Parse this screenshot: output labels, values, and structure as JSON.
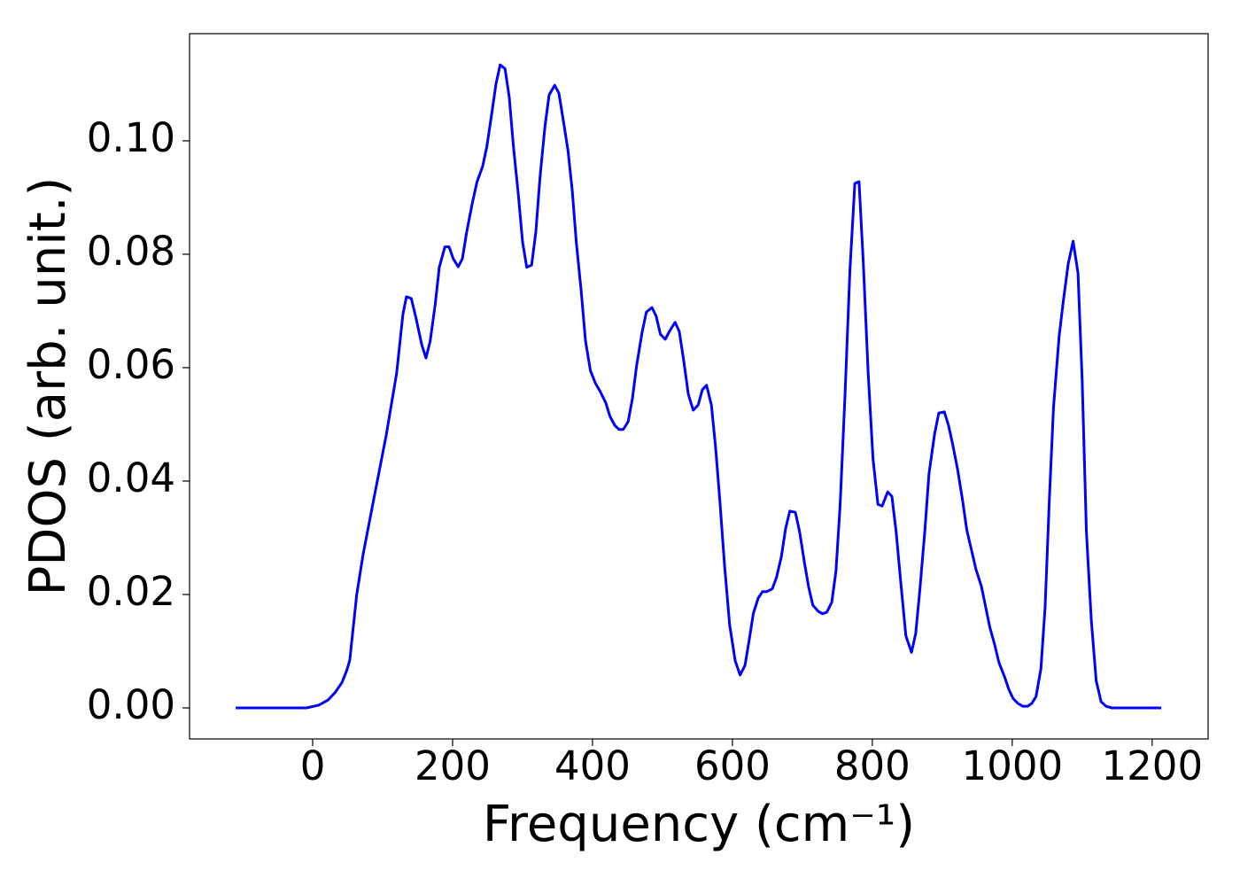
{
  "chart_data": {
    "type": "line",
    "xlabel": "Frequency (cm⁻¹)",
    "ylabel": "PDOS (arb. unit.)",
    "xlim": [
      -176,
      1280
    ],
    "ylim": [
      -0.00547,
      0.1189
    ],
    "xticks": [
      0,
      200,
      400,
      600,
      800,
      1000,
      1200
    ],
    "yticks": [
      {
        "value": 0,
        "label": "0.00"
      },
      {
        "value": 0.02,
        "label": "0.02"
      },
      {
        "value": 0.04,
        "label": "0.04"
      },
      {
        "value": 0.06,
        "label": "0.06"
      },
      {
        "value": 0.08,
        "label": "0.08"
      },
      {
        "value": 0.1,
        "label": "0.10"
      }
    ],
    "grid": false,
    "x": [
      -110,
      -9,
      9,
      22,
      32,
      42,
      49,
      53,
      63,
      72,
      87,
      105,
      120,
      129,
      134,
      141,
      148,
      156,
      162,
      168,
      175,
      181,
      189,
      195,
      201,
      208,
      214,
      220,
      228,
      235,
      243,
      249,
      256,
      262,
      268,
      275,
      281,
      287,
      294,
      300,
      306,
      313,
      319,
      325,
      332,
      338,
      346,
      352,
      358,
      365,
      371,
      377,
      384,
      390,
      397,
      404,
      411,
      419,
      425,
      432,
      438,
      444,
      451,
      457,
      463,
      471,
      477,
      485,
      491,
      497,
      504,
      510,
      518,
      524,
      530,
      537,
      544,
      551,
      557,
      563,
      570,
      576,
      582,
      589,
      596,
      604,
      611,
      618,
      624,
      630,
      637,
      643,
      649,
      657,
      663,
      670,
      676,
      682,
      690,
      696,
      703,
      709,
      715,
      723,
      729,
      735,
      742,
      748,
      754,
      761,
      768,
      775,
      781,
      787,
      794,
      801,
      808,
      814,
      822,
      828,
      834,
      841,
      848,
      856,
      862,
      868,
      875,
      881,
      889,
      895,
      903,
      909,
      915,
      922,
      929,
      935,
      942,
      948,
      956,
      962,
      968,
      975,
      981,
      989,
      995,
      1001,
      1008,
      1015,
      1022,
      1028,
      1034,
      1041,
      1047,
      1053,
      1059,
      1067,
      1073,
      1080,
      1087,
      1094,
      1100,
      1106,
      1113,
      1120,
      1127,
      1134,
      1142,
      1213
    ],
    "series": [
      {
        "name": "PDOS",
        "color": "#0000ff",
        "values": [
          0,
          0,
          0.0005,
          0.0014,
          0.0027,
          0.0045,
          0.0067,
          0.0084,
          0.02,
          0.027,
          0.0366,
          0.048,
          0.059,
          0.0694,
          0.0725,
          0.0722,
          0.0686,
          0.064,
          0.0617,
          0.0647,
          0.071,
          0.0777,
          0.0813,
          0.0813,
          0.0792,
          0.0778,
          0.0792,
          0.0838,
          0.0889,
          0.0928,
          0.0955,
          0.099,
          0.1048,
          0.11,
          0.1134,
          0.1127,
          0.1077,
          0.099,
          0.0905,
          0.0822,
          0.0777,
          0.0781,
          0.0839,
          0.0936,
          0.1025,
          0.1081,
          0.1098,
          0.1084,
          0.1038,
          0.0983,
          0.0913,
          0.0819,
          0.0733,
          0.0647,
          0.0595,
          0.0573,
          0.0558,
          0.0538,
          0.0514,
          0.0498,
          0.0491,
          0.0491,
          0.0505,
          0.0545,
          0.0603,
          0.0663,
          0.0698,
          0.0706,
          0.0691,
          0.0659,
          0.065,
          0.0664,
          0.068,
          0.0664,
          0.0616,
          0.0553,
          0.0525,
          0.0534,
          0.0561,
          0.0569,
          0.0534,
          0.0459,
          0.0366,
          0.0248,
          0.0147,
          0.0083,
          0.0058,
          0.0075,
          0.012,
          0.0167,
          0.0194,
          0.0205,
          0.0205,
          0.021,
          0.023,
          0.0267,
          0.0316,
          0.0347,
          0.0345,
          0.0311,
          0.0256,
          0.0213,
          0.0181,
          0.017,
          0.0166,
          0.0169,
          0.0186,
          0.0241,
          0.0358,
          0.0553,
          0.0772,
          0.0925,
          0.0928,
          0.0788,
          0.0592,
          0.0439,
          0.0359,
          0.0356,
          0.0381,
          0.0373,
          0.0311,
          0.0217,
          0.0127,
          0.0098,
          0.0131,
          0.0209,
          0.0311,
          0.0413,
          0.0483,
          0.052,
          0.0522,
          0.0498,
          0.0464,
          0.042,
          0.0366,
          0.0314,
          0.0277,
          0.0245,
          0.0214,
          0.0178,
          0.0142,
          0.0111,
          0.008,
          0.0055,
          0.0033,
          0.0017,
          0.0008,
          0.0003,
          0.0003,
          0.0008,
          0.002,
          0.0069,
          0.0178,
          0.0366,
          0.053,
          0.0655,
          0.0717,
          0.0783,
          0.0823,
          0.0767,
          0.0577,
          0.0311,
          0.0155,
          0.0048,
          0.0011,
          0.0003,
          0,
          0
        ]
      }
    ]
  }
}
